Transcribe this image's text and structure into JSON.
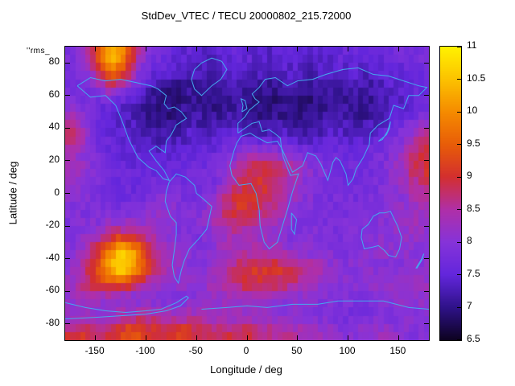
{
  "title": "StdDev_VTEC / TECU 20000802_215.72000",
  "annotation": "''rms_",
  "axes": {
    "xlabel": "Longitude / deg",
    "ylabel": "Latitude / deg",
    "xlim": [
      -180,
      180
    ],
    "ylim": [
      -90,
      90
    ],
    "xticks": [
      -150,
      -100,
      -50,
      0,
      50,
      100,
      150
    ],
    "yticks": [
      -80,
      -60,
      -40,
      -20,
      0,
      20,
      40,
      60,
      80
    ]
  },
  "colorbar": {
    "min": 6.5,
    "max": 11,
    "ticks": [
      6.5,
      7,
      7.5,
      8,
      8.5,
      9,
      9.5,
      10,
      10.5,
      11
    ]
  },
  "palette": [
    [
      6.5,
      "#0d0221"
    ],
    [
      7.0,
      "#2f128a"
    ],
    [
      7.5,
      "#6326dc"
    ],
    [
      8.0,
      "#8633d9"
    ],
    [
      8.5,
      "#b02fa8"
    ],
    [
      9.0,
      "#d32f2f"
    ],
    [
      9.5,
      "#e85d08"
    ],
    [
      10.0,
      "#f58b00"
    ],
    [
      10.5,
      "#fcc200"
    ],
    [
      11.0,
      "#fff200"
    ]
  ],
  "coastline_color": "#44aaee",
  "chart_data": {
    "type": "heatmap",
    "title": "StdDev_VTEC / TECU 20000802_215.72000",
    "xlabel": "Longitude / deg",
    "ylabel": "Latitude / deg",
    "x_range": [
      -180,
      180
    ],
    "y_range": [
      -90,
      90
    ],
    "cell_deg": 10,
    "rows_order": "north-to-south",
    "units": "TECU",
    "value_range": [
      6.5,
      11
    ],
    "values": [
      [
        7.9,
        8.0,
        8.6,
        9.6,
        10.5,
        10.2,
        9.2,
        8.3,
        7.9,
        7.7,
        7.6,
        7.5,
        7.5,
        7.4,
        7.4,
        7.5,
        7.6,
        7.6,
        7.5,
        7.4,
        7.4,
        7.5,
        7.5,
        7.4,
        7.4,
        7.5,
        7.5,
        7.6,
        7.6,
        7.5,
        7.5,
        7.6,
        7.7,
        7.7,
        7.8,
        7.8
      ],
      [
        7.8,
        7.9,
        8.3,
        9.0,
        9.8,
        9.5,
        8.6,
        8.0,
        7.7,
        7.5,
        7.4,
        7.3,
        7.3,
        7.3,
        7.2,
        7.3,
        7.4,
        7.4,
        7.4,
        7.3,
        7.3,
        7.4,
        7.4,
        7.3,
        7.3,
        7.4,
        7.4,
        7.4,
        7.5,
        7.4,
        7.4,
        7.5,
        7.5,
        7.6,
        7.7,
        7.7
      ],
      [
        7.8,
        7.8,
        7.9,
        8.2,
        8.5,
        8.3,
        7.9,
        7.5,
        7.2,
        7.1,
        7.0,
        7.0,
        7.1,
        7.1,
        7.0,
        7.1,
        7.2,
        7.2,
        7.1,
        7.1,
        7.0,
        7.1,
        7.1,
        7.0,
        7.0,
        7.1,
        7.1,
        7.2,
        7.2,
        7.1,
        7.2,
        7.3,
        7.4,
        7.5,
        7.6,
        7.6
      ],
      [
        7.9,
        7.8,
        7.7,
        7.6,
        7.5,
        7.4,
        7.3,
        7.1,
        7.0,
        6.9,
        6.9,
        7.0,
        7.1,
        7.0,
        7.0,
        7.0,
        7.1,
        7.1,
        7.0,
        7.0,
        6.9,
        7.0,
        7.0,
        6.9,
        7.0,
        7.0,
        7.1,
        7.1,
        7.1,
        7.0,
        7.1,
        7.2,
        7.3,
        7.4,
        7.5,
        7.6
      ],
      [
        8.6,
        8.2,
        7.8,
        7.6,
        7.5,
        7.4,
        7.3,
        7.2,
        7.0,
        7.0,
        7.0,
        7.1,
        7.2,
        7.2,
        7.1,
        7.2,
        7.2,
        7.2,
        7.1,
        7.0,
        7.0,
        7.1,
        7.1,
        7.0,
        7.1,
        7.1,
        7.2,
        7.2,
        7.2,
        7.1,
        7.2,
        7.3,
        7.5,
        7.6,
        7.8,
        7.9
      ],
      [
        9.0,
        8.5,
        7.9,
        7.7,
        7.6,
        7.5,
        7.4,
        7.3,
        7.2,
        7.2,
        7.2,
        7.3,
        7.4,
        7.3,
        7.3,
        7.4,
        7.5,
        7.5,
        7.4,
        7.4,
        7.4,
        7.4,
        7.3,
        7.3,
        7.3,
        7.4,
        7.4,
        7.4,
        7.4,
        7.4,
        7.5,
        7.6,
        7.8,
        8.0,
        8.4,
        8.7
      ],
      [
        8.4,
        8.2,
        7.9,
        7.7,
        7.6,
        7.6,
        7.5,
        7.5,
        7.4,
        7.4,
        7.4,
        7.5,
        7.6,
        7.6,
        7.6,
        7.7,
        7.9,
        8.1,
        8.2,
        8.2,
        8.1,
        8.0,
        7.9,
        7.8,
        7.7,
        7.7,
        7.7,
        7.6,
        7.6,
        7.6,
        7.7,
        7.8,
        8.0,
        8.3,
        8.7,
        8.9
      ],
      [
        8.3,
        8.2,
        8.0,
        7.8,
        7.7,
        7.6,
        7.6,
        7.6,
        7.6,
        7.6,
        7.6,
        7.6,
        7.7,
        7.7,
        7.7,
        7.9,
        8.3,
        8.7,
        8.9,
        9.0,
        8.9,
        8.7,
        8.5,
        8.2,
        8.0,
        7.9,
        7.8,
        7.7,
        7.7,
        7.7,
        7.8,
        7.9,
        8.1,
        8.4,
        8.8,
        9.0
      ],
      [
        8.2,
        8.1,
        8.0,
        7.8,
        7.7,
        7.6,
        7.6,
        7.6,
        7.7,
        7.8,
        7.8,
        7.7,
        7.7,
        7.7,
        7.8,
        8.1,
        8.5,
        8.8,
        9.0,
        9.0,
        8.8,
        8.6,
        8.3,
        8.1,
        7.9,
        7.8,
        7.8,
        7.7,
        7.7,
        7.8,
        7.8,
        7.9,
        8.0,
        8.2,
        8.5,
        8.7
      ],
      [
        8.0,
        7.9,
        7.9,
        7.8,
        7.7,
        7.7,
        7.7,
        7.8,
        8.0,
        8.1,
        8.0,
        7.9,
        7.8,
        7.9,
        8.2,
        8.6,
        8.9,
        9.1,
        9.0,
        8.9,
        8.7,
        8.4,
        8.2,
        8.0,
        7.9,
        7.8,
        7.8,
        7.8,
        7.8,
        7.8,
        7.9,
        7.9,
        8.0,
        8.1,
        8.3,
        8.4
      ],
      [
        7.9,
        7.9,
        7.9,
        7.9,
        8.0,
        8.0,
        8.0,
        8.0,
        8.1,
        8.1,
        8.0,
        7.9,
        7.9,
        8.0,
        8.3,
        8.6,
        8.8,
        8.9,
        8.8,
        8.6,
        8.4,
        8.2,
        8.0,
        7.9,
        7.9,
        7.8,
        7.8,
        7.8,
        7.9,
        7.9,
        7.9,
        8.0,
        8.1,
        8.2,
        8.3,
        8.3
      ],
      [
        7.9,
        8.0,
        8.1,
        8.3,
        8.6,
        8.8,
        8.8,
        8.6,
        8.4,
        8.2,
        8.0,
        7.9,
        7.9,
        7.9,
        8.1,
        8.3,
        8.4,
        8.4,
        8.3,
        8.2,
        8.1,
        8.0,
        7.9,
        7.9,
        7.9,
        7.9,
        7.8,
        7.8,
        7.9,
        7.9,
        8.0,
        8.0,
        8.1,
        8.2,
        8.2,
        8.1
      ],
      [
        8.0,
        8.2,
        8.6,
        9.2,
        9.9,
        10.6,
        10.3,
        9.5,
        8.9,
        8.5,
        8.2,
        8.0,
        7.9,
        7.9,
        8.0,
        8.2,
        8.3,
        8.4,
        8.4,
        8.4,
        8.3,
        8.2,
        8.1,
        8.0,
        8.0,
        7.9,
        7.9,
        7.9,
        7.9,
        8.0,
        8.0,
        8.1,
        8.1,
        8.1,
        8.1,
        8.0
      ],
      [
        8.1,
        8.4,
        8.9,
        9.6,
        10.4,
        10.9,
        10.5,
        9.7,
        9.0,
        8.6,
        8.3,
        8.1,
        8.0,
        8.0,
        8.1,
        8.3,
        8.6,
        8.8,
        9.0,
        9.1,
        9.1,
        9.0,
        8.9,
        8.7,
        8.5,
        8.3,
        8.1,
        8.0,
        8.0,
        8.0,
        8.0,
        8.0,
        8.0,
        8.0,
        8.0,
        8.0
      ],
      [
        8.3,
        8.6,
        8.9,
        9.2,
        9.4,
        9.4,
        9.1,
        8.8,
        8.5,
        8.3,
        8.2,
        8.1,
        8.1,
        8.2,
        8.3,
        8.5,
        8.7,
        8.9,
        9.0,
        9.0,
        8.9,
        8.8,
        8.7,
        8.5,
        8.3,
        8.2,
        8.1,
        8.0,
        8.0,
        8.0,
        8.1,
        8.1,
        8.2,
        8.2,
        8.2,
        8.2
      ],
      [
        8.2,
        8.3,
        8.3,
        8.2,
        8.1,
        8.0,
        7.9,
        7.9,
        7.9,
        7.9,
        7.9,
        7.9,
        8.0,
        8.0,
        8.1,
        8.2,
        8.3,
        8.3,
        8.3,
        8.2,
        8.2,
        8.1,
        8.1,
        8.0,
        8.0,
        7.9,
        7.9,
        7.9,
        7.9,
        7.9,
        8.0,
        8.0,
        8.0,
        8.1,
        8.1,
        8.1
      ],
      [
        8.1,
        8.2,
        8.2,
        8.2,
        8.3,
        8.4,
        8.5,
        8.6,
        8.6,
        8.5,
        8.4,
        8.4,
        8.4,
        8.3,
        8.2,
        8.2,
        8.2,
        8.2,
        8.1,
        8.1,
        8.1,
        8.1,
        8.0,
        8.0,
        7.9,
        7.9,
        7.9,
        7.8,
        7.8,
        7.8,
        7.8,
        7.9,
        7.9,
        8.0,
        8.0,
        8.0
      ],
      [
        8.9,
        9.1,
        9.0,
        8.8,
        8.9,
        9.2,
        9.4,
        9.3,
        9.1,
        9.0,
        9.1,
        9.2,
        9.1,
        8.9,
        8.8,
        8.8,
        8.9,
        8.9,
        8.8,
        8.7,
        8.6,
        8.6,
        8.5,
        8.4,
        8.3,
        8.2,
        8.1,
        8.0,
        8.0,
        8.1,
        8.2,
        8.2,
        8.1,
        8.0,
        7.9,
        7.9
      ]
    ]
  },
  "coastlines": [
    [
      [
        -168,
        66
      ],
      [
        -155,
        59
      ],
      [
        -140,
        60
      ],
      [
        -130,
        54
      ],
      [
        -124,
        45
      ],
      [
        -117,
        33
      ],
      [
        -108,
        22
      ],
      [
        -97,
        16
      ],
      [
        -90,
        14
      ],
      [
        -83,
        9
      ],
      [
        -77,
        8
      ],
      [
        -82,
        14
      ],
      [
        -90,
        20
      ],
      [
        -97,
        26
      ],
      [
        -90,
        29
      ],
      [
        -81,
        25
      ],
      [
        -80,
        32
      ],
      [
        -75,
        36
      ],
      [
        -70,
        42
      ],
      [
        -60,
        46
      ],
      [
        -65,
        50
      ],
      [
        -72,
        53
      ],
      [
        -78,
        52
      ],
      [
        -82,
        55
      ],
      [
        -80,
        60
      ],
      [
        -88,
        64
      ],
      [
        -95,
        66
      ],
      [
        -110,
        68
      ],
      [
        -125,
        70
      ],
      [
        -140,
        69
      ],
      [
        -155,
        71
      ],
      [
        -168,
        66
      ]
    ],
    [
      [
        -52,
        64
      ],
      [
        -55,
        70
      ],
      [
        -52,
        76
      ],
      [
        -45,
        80
      ],
      [
        -35,
        83
      ],
      [
        -25,
        81
      ],
      [
        -20,
        76
      ],
      [
        -26,
        70
      ],
      [
        -35,
        66
      ],
      [
        -45,
        60
      ],
      [
        -52,
        64
      ]
    ],
    [
      [
        -77,
        7
      ],
      [
        -70,
        12
      ],
      [
        -61,
        10
      ],
      [
        -52,
        5
      ],
      [
        -50,
        0
      ],
      [
        -44,
        -3
      ],
      [
        -35,
        -8
      ],
      [
        -37,
        -14
      ],
      [
        -40,
        -22
      ],
      [
        -48,
        -28
      ],
      [
        -57,
        -34
      ],
      [
        -62,
        -41
      ],
      [
        -65,
        -47
      ],
      [
        -68,
        -55
      ],
      [
        -72,
        -51
      ],
      [
        -74,
        -44
      ],
      [
        -72,
        -35
      ],
      [
        -70,
        -25
      ],
      [
        -70,
        -18
      ],
      [
        -76,
        -14
      ],
      [
        -81,
        -5
      ],
      [
        -80,
        1
      ],
      [
        -77,
        7
      ]
    ],
    [
      [
        -10,
        31
      ],
      [
        -6,
        35
      ],
      [
        3,
        37
      ],
      [
        11,
        34
      ],
      [
        20,
        31
      ],
      [
        30,
        32
      ],
      [
        34,
        28
      ],
      [
        36,
        22
      ],
      [
        43,
        11
      ],
      [
        51,
        12
      ],
      [
        45,
        1
      ],
      [
        40,
        -10
      ],
      [
        35,
        -20
      ],
      [
        30,
        -30
      ],
      [
        22,
        -34
      ],
      [
        17,
        -30
      ],
      [
        13,
        -20
      ],
      [
        12,
        -10
      ],
      [
        9,
        0
      ],
      [
        4,
        6
      ],
      [
        -8,
        5
      ],
      [
        -15,
        11
      ],
      [
        -17,
        17
      ],
      [
        -13,
        26
      ],
      [
        -10,
        31
      ]
    ],
    [
      [
        -9,
        37
      ],
      [
        -9,
        43
      ],
      [
        -2,
        47
      ],
      [
        2,
        51
      ],
      [
        8,
        54
      ],
      [
        12,
        56
      ],
      [
        8,
        58
      ],
      [
        5,
        61
      ],
      [
        12,
        65
      ],
      [
        18,
        70
      ],
      [
        28,
        71
      ],
      [
        40,
        66
      ],
      [
        50,
        69
      ],
      [
        65,
        70
      ],
      [
        78,
        73
      ],
      [
        95,
        76
      ],
      [
        110,
        77
      ],
      [
        125,
        73
      ],
      [
        140,
        72
      ],
      [
        155,
        69
      ],
      [
        170,
        66
      ],
      [
        178,
        65
      ],
      [
        170,
        60
      ],
      [
        160,
        60
      ],
      [
        155,
        52
      ],
      [
        145,
        54
      ],
      [
        141,
        46
      ],
      [
        130,
        42
      ],
      [
        122,
        37
      ],
      [
        121,
        30
      ],
      [
        115,
        22
      ],
      [
        108,
        15
      ],
      [
        105,
        9
      ],
      [
        100,
        5
      ],
      [
        98,
        12
      ],
      [
        92,
        20
      ],
      [
        88,
        22
      ],
      [
        85,
        19
      ],
      [
        80,
        8
      ],
      [
        73,
        18
      ],
      [
        68,
        23
      ],
      [
        60,
        25
      ],
      [
        55,
        17
      ],
      [
        45,
        13
      ],
      [
        39,
        21
      ],
      [
        34,
        28
      ],
      [
        33,
        34
      ],
      [
        27,
        37
      ],
      [
        22,
        39
      ],
      [
        15,
        38
      ],
      [
        12,
        44
      ],
      [
        5,
        43
      ],
      [
        -2,
        40
      ],
      [
        -9,
        37
      ]
    ],
    [
      [
        -5,
        50
      ],
      [
        -4,
        54
      ],
      [
        -6,
        58
      ],
      [
        -2,
        57
      ],
      [
        0,
        52
      ],
      [
        -5,
        50
      ]
    ],
    [
      [
        114,
        -22
      ],
      [
        113,
        -27
      ],
      [
        116,
        -34
      ],
      [
        124,
        -33
      ],
      [
        130,
        -32
      ],
      [
        136,
        -35
      ],
      [
        140,
        -38
      ],
      [
        147,
        -39
      ],
      [
        151,
        -34
      ],
      [
        153,
        -27
      ],
      [
        149,
        -20
      ],
      [
        145,
        -15
      ],
      [
        142,
        -11
      ],
      [
        136,
        -12
      ],
      [
        131,
        -12
      ],
      [
        125,
        -14
      ],
      [
        120,
        -19
      ],
      [
        114,
        -22
      ]
    ],
    [
      [
        44,
        -12
      ],
      [
        49,
        -16
      ],
      [
        47,
        -25
      ],
      [
        44,
        -22
      ],
      [
        44,
        -12
      ]
    ],
    [
      [
        167,
        -46
      ],
      [
        170,
        -43
      ],
      [
        173,
        -40
      ],
      [
        175,
        -37
      ],
      [
        173,
        -41
      ],
      [
        168,
        -46
      ]
    ],
    [
      [
        130,
        32
      ],
      [
        134,
        34
      ],
      [
        138,
        36
      ],
      [
        141,
        40
      ],
      [
        142,
        44
      ],
      [
        139,
        38
      ],
      [
        134,
        33
      ],
      [
        130,
        32
      ]
    ],
    [
      [
        -180,
        -67
      ],
      [
        -160,
        -70
      ],
      [
        -140,
        -72
      ],
      [
        -120,
        -73
      ],
      [
        -100,
        -72
      ],
      [
        -85,
        -71
      ],
      [
        -70,
        -67
      ],
      [
        -60,
        -63
      ],
      [
        -58,
        -64
      ],
      [
        -66,
        -69
      ],
      [
        -80,
        -72
      ],
      [
        -100,
        -74
      ],
      [
        -125,
        -75
      ],
      [
        -150,
        -76
      ],
      [
        -180,
        -77
      ]
    ],
    [
      [
        -45,
        -71
      ],
      [
        -20,
        -70
      ],
      [
        0,
        -69
      ],
      [
        20,
        -70
      ],
      [
        45,
        -68
      ],
      [
        70,
        -68
      ],
      [
        90,
        -66
      ],
      [
        110,
        -66
      ],
      [
        135,
        -66
      ],
      [
        160,
        -70
      ],
      [
        180,
        -71
      ]
    ]
  ]
}
